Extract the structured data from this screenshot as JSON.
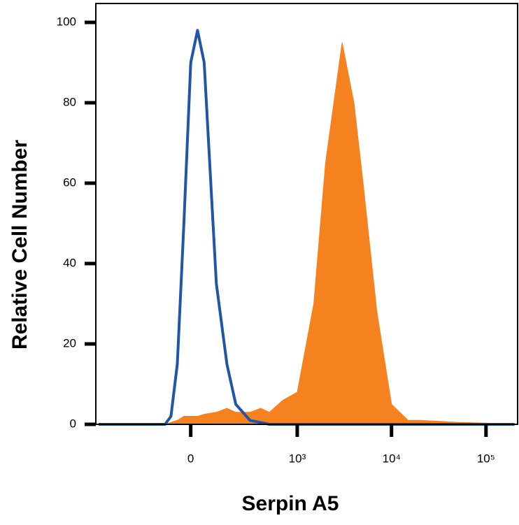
{
  "chart_data": {
    "type": "area",
    "x_label": "Serpin A5",
    "y_label": "Relative Cell Number",
    "xscale": "arcsinh",
    "xlim": [
      -750,
      216000
    ],
    "xticks": [
      0,
      {
        "value": 1000,
        "label": "10³"
      },
      {
        "value": 10000,
        "label": "10⁴"
      },
      {
        "value": 100000,
        "label": "10⁵"
      }
    ],
    "ylim": [
      0,
      104.7
    ],
    "yticks": [
      0,
      20,
      40,
      60,
      80,
      100
    ],
    "series": [
      {
        "color": "#f5821f",
        "fill": true,
        "x": [
          -700,
          -100,
          -50,
          -25,
          25,
          50,
          100,
          150,
          200,
          300,
          400,
          500,
          700,
          1000,
          1500,
          2000,
          3000,
          4000,
          5000,
          7000,
          10000,
          15000,
          20000,
          50000,
          100000,
          200000
        ],
        "values": [
          0,
          0,
          1,
          2,
          2,
          2.5,
          3,
          4,
          3,
          3,
          4,
          3,
          6,
          8,
          30,
          65,
          95,
          80,
          60,
          28,
          5,
          1,
          1,
          0.5,
          0.3,
          0
        ]
      },
      {
        "color": "#1f56a8",
        "fill": false,
        "x": [
          -700,
          -200,
          -100,
          -75,
          -50,
          -25,
          0,
          25,
          50,
          100,
          150,
          200,
          300,
          500,
          200000
        ],
        "values": [
          0,
          0,
          0,
          2,
          15,
          50,
          90,
          98,
          90,
          35,
          15,
          5,
          1,
          0,
          0
        ]
      }
    ]
  }
}
